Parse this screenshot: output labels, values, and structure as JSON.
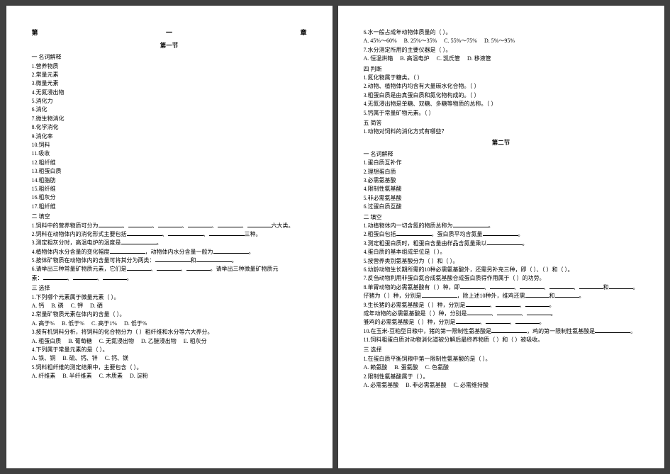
{
  "chapter": {
    "left": "第",
    "mid": "一",
    "right": "章"
  },
  "sectionLabels": {
    "s1": "第一节",
    "s2": "第二节"
  },
  "groupLabels": {
    "terms": "一 名词解释",
    "fill": "二 填空",
    "choice": "三 选择",
    "judge": "四 判断",
    "short": "五 简答"
  },
  "s1": {
    "terms": [
      "1.营养物质",
      "2.常量元素",
      "3.微量元素",
      "4.无氮浸出物",
      "5.消化力",
      "6.消化",
      "7.微生物消化",
      "8.化学消化",
      "9.消化率",
      "10.饲料",
      "11.吸收",
      "12.粗纤维",
      "13.粗蛋白质",
      "14.粗脂肪",
      "15.粗纤维",
      "16.粗灰分",
      "17.粗纤维"
    ],
    "fills": [
      {
        "pre": "1.饲料中的营养物质可分为",
        "blanks": 6,
        "post": "六大类。"
      },
      {
        "pre": "2.饲料在动物体内的消化形式主要包括",
        "blanks": 3,
        "post": "三种。"
      },
      {
        "pre": "3.测定粗灰分时，高温电炉的温度是",
        "blanks": 1,
        "post": "。"
      },
      {
        "pre": "4.植物体内水分含量的变化幅度",
        "blanks": 1,
        "mid": "，动物体内水分含量一般为",
        "blanks2": 1,
        "post": "。"
      },
      {
        "pre": "5.按体矿物质在动物体内的含量可将其分为两类：",
        "blanks": 1,
        "mid": "和",
        "blanks2": 1,
        "post": "。"
      },
      {
        "pre": "6.请举出三种常量矿物质元素，它们是",
        "blanks": 3,
        "mid": "。请举出三种微量矿物质元",
        "post": ""
      },
      {
        "pre": "素：",
        "blanks": 3,
        "post": "。"
      }
    ],
    "choices": [
      {
        "q": "1.下列哪个元素属于微量元素（   ）。",
        "opts": [
          "A. 钙",
          "B. 磷",
          "C. 钾",
          "D. 硒"
        ]
      },
      {
        "q": "2.常量矿物质元素在体内的含量（   ）。",
        "opts": [
          "A. 高于%",
          "B. 低于%",
          "C. 高于1%",
          "D. 低于%"
        ]
      },
      {
        "q": "3.按有机饲料分析，将饲料的化合物分为（   ）粗纤维和水分等六大养分。",
        "opts": [
          "A. 粗蛋白质",
          "B. 葡萄糖",
          "C. 无氮浸出物",
          "D. 乙醚浸出物",
          "E. 粗灰分"
        ]
      },
      {
        "q": "4.下列属于常量元素的是（   ）。",
        "opts": [
          "A. 铁、铜",
          "B. 硫、钙、锌",
          "C. 钙、镁"
        ]
      },
      {
        "q": "5.饲料粗纤维的测定结果中，主要包含（   ）。",
        "opts": [
          "A. 纤维素",
          "B. 半纤维素",
          "C. 木质素",
          "D. 淀粉"
        ]
      }
    ]
  },
  "p2": {
    "choiceCont": [
      {
        "q": "6.水一般占成年动物体质量的（   ）。",
        "opts": [
          "A. 45%～60%",
          "B. 25%～35%",
          "C. 55%～75%",
          "D. 5%～95%"
        ]
      },
      {
        "q": "7.水分测定所用的主要仪器是（   ）。",
        "opts": [
          "A. 恒温烘箱",
          "B. 高温电炉",
          "C. 凯氏管",
          "D. 移液管"
        ]
      }
    ],
    "judge": [
      "1.氮化物属于糖类。（   ）",
      "2.动物、植物体内均含有大量碳水化合物。（   ）",
      "3.粗蛋白质是由真蛋白质和氮化物构成的。（   ）",
      "4.无氮浸出物是单糖、双糖、多糖等物质的总称。（   ）",
      "5.钙属于常量矿物元素。（   ）"
    ],
    "short": [
      "1.动物对饲料的消化方式有哪些？"
    ],
    "s2terms": [
      "1.蛋白质互补作",
      "2.理想蛋白质",
      "3.必需氨基酸",
      "4.限制性氨基酸",
      "5.非必需氨基酸",
      "6.过蛋白质互酸"
    ],
    "s2fills": [
      {
        "pre": "1.动植物体内一切含氮的物质总称为",
        "blanks": 1,
        "post": "。"
      },
      {
        "pre": "2.粗蛋白包括",
        "blanks": 1,
        "mid": "，蛋白质平均含氮量",
        "blanks2": 1,
        "post": "。"
      },
      {
        "pre": "3.测定粗蛋白质时，粗蛋白含量由样品含氮量乘以",
        "blanks": 1,
        "post": "。"
      },
      {
        "pre": "4.蛋白质的基本组成单位是（",
        "blanks": 0,
        "post": "   ）。"
      },
      {
        "pre": "5.按营养类别氨基酸分为（",
        "blanks": 0,
        "post": "   ）和（   ）。"
      },
      {
        "pre": "6.幼龄动物生长期所需的10种必需氨基酸外，还需另补充三种，即（   ）、（   ）和（   ）。"
      },
      {
        "pre": "7.反刍动物利用非蛋白氮合成氨基酸合成蛋白质得作用属于（   ）的功劳。"
      },
      {
        "pre": "8.单胃动物的必需氨基酸有（   ）种，即",
        "blanks": 6,
        "post": ""
      },
      {
        "pre": "仔猪为（   ）种，分别是",
        "blanks": 1,
        "mid": "，除上述10种外，维鸡还需",
        "blanks2": 2,
        "post": "。"
      },
      {
        "pre": "9.生长猪的必需氨基酸是（   ）种，分别是",
        "blanks": 3,
        "post": "。"
      },
      {
        "pre": "成年动物的必需氨基酸是（   ）种，分别是",
        "blanks": 3,
        "post": "。"
      },
      {
        "pre": "雏鸡的必需氨基酸是（   ）种，分别是",
        "blanks": 3,
        "post": "。"
      },
      {
        "pre": "10.在玉米-豆粕型日粮中，猪的第一限制性氨基酸是",
        "blanks": 1,
        "mid": "，鸡的第一限制性氨基酸是",
        "blanks2": 1,
        "post": "。"
      },
      {
        "pre": "11.饲料粗蛋白质对动物消化道被分解后最终养物质（   ）和（   ）被吸收。"
      }
    ],
    "s2choices": [
      {
        "q": "1.在蛋白质平衡饲粮中第一限制性氨基酸的是（   ）。",
        "opts": [
          "A. 赖氨酸",
          "B. 蛋氨酸",
          "C. 色氨酸"
        ]
      },
      {
        "q": "2.限制性氨基酸属于（   ）。",
        "opts": [
          "A. 必需氨基酸",
          "B. 非必需氨基酸",
          "C. 必需维持酸"
        ]
      }
    ]
  }
}
